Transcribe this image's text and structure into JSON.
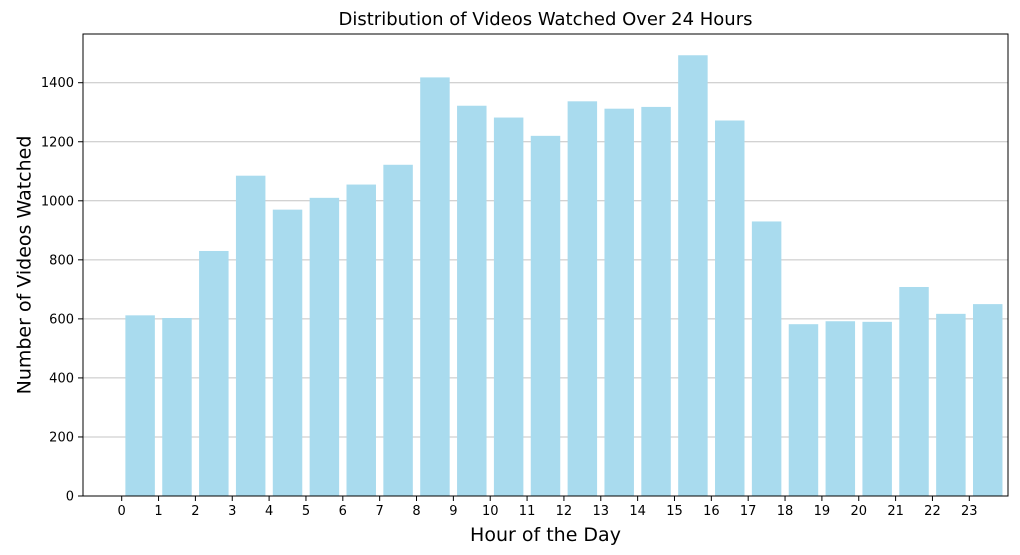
{
  "chart_data": {
    "type": "bar",
    "title": "Distribution of Videos Watched Over 24 Hours",
    "xlabel": "Hour of the Day",
    "ylabel": "Number of Videos Watched",
    "categories": [
      "0",
      "1",
      "2",
      "3",
      "4",
      "5",
      "6",
      "7",
      "8",
      "9",
      "10",
      "11",
      "12",
      "13",
      "14",
      "15",
      "16",
      "17",
      "18",
      "19",
      "20",
      "21",
      "22",
      "23"
    ],
    "values": [
      612,
      603,
      830,
      1085,
      970,
      1010,
      1055,
      1122,
      1418,
      1322,
      1282,
      1220,
      1337,
      1312,
      1318,
      1493,
      1272,
      930,
      582,
      592,
      590,
      708,
      617,
      650
    ],
    "yticks": [
      0,
      200,
      400,
      600,
      800,
      1000,
      1200,
      1400
    ],
    "ylim": [
      0,
      1565
    ],
    "grid": "y",
    "bar_color": "#a9dbee",
    "legend": "none"
  }
}
